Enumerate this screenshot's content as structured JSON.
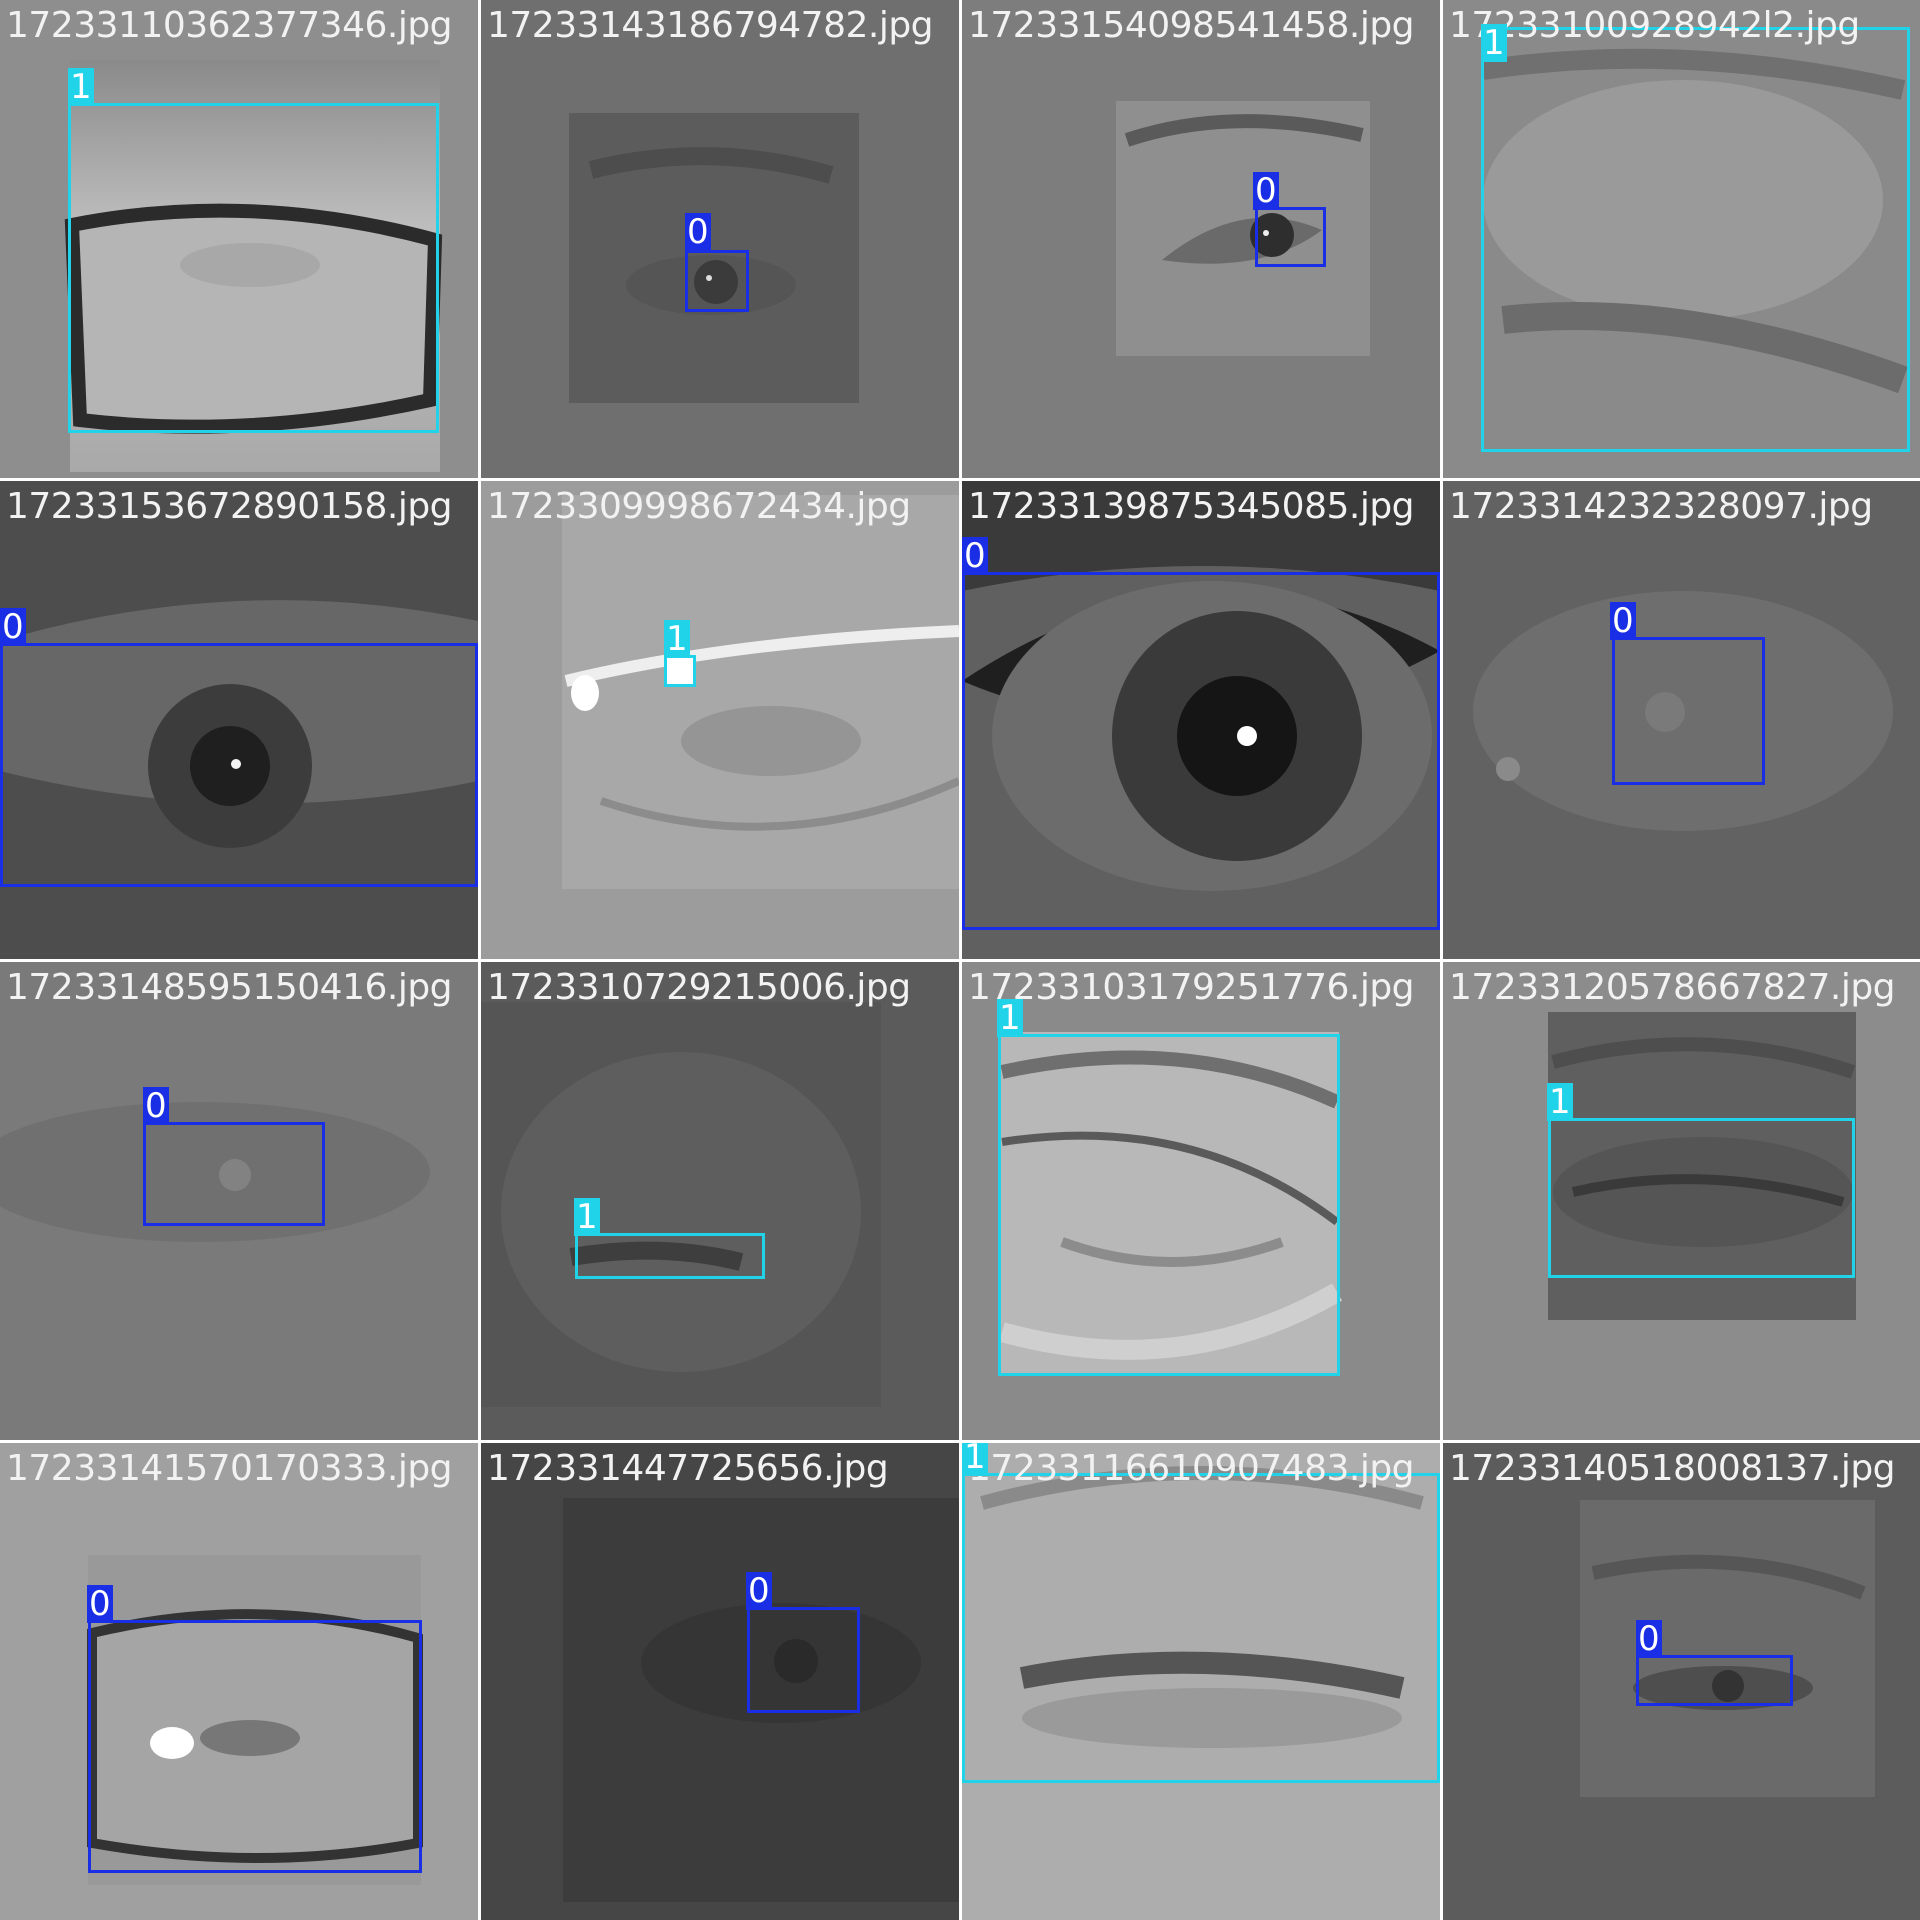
{
  "colors": {
    "class_0": "#1a2ee6",
    "class_1": "#21d3e8",
    "filename_text": "#f2f2f2"
  },
  "tiles": [
    {
      "filename": "17233110362377346.jpg",
      "detections": [
        {
          "label": "1"
        }
      ]
    },
    {
      "filename": "17233143186794782.jpg",
      "detections": [
        {
          "label": "0"
        }
      ]
    },
    {
      "filename": "17233154098541458.jpg",
      "detections": [
        {
          "label": "0"
        }
      ]
    },
    {
      "filename": "17233100928942l2.jpg",
      "detections": [
        {
          "label": "1"
        }
      ]
    },
    {
      "filename": "17233153672890158.jpg",
      "detections": [
        {
          "label": "0"
        }
      ]
    },
    {
      "filename": "1723309998672434.jpg",
      "detections": [
        {
          "label": "1"
        }
      ]
    },
    {
      "filename": "17233139875345085.jpg",
      "detections": [
        {
          "label": "0"
        }
      ]
    },
    {
      "filename": "1723314232328097.jpg",
      "detections": [
        {
          "label": "0"
        }
      ]
    },
    {
      "filename": "17233148595150416.jpg",
      "detections": [
        {
          "label": "0"
        }
      ]
    },
    {
      "filename": "1723310729215006.jpg",
      "detections": [
        {
          "label": "1"
        }
      ]
    },
    {
      "filename": "17233103179251776.jpg",
      "detections": [
        {
          "label": "1"
        }
      ]
    },
    {
      "filename": "17233120578667827.jpg",
      "detections": [
        {
          "label": "1"
        }
      ]
    },
    {
      "filename": "17233141570170333.jpg",
      "detections": [
        {
          "label": "0"
        }
      ]
    },
    {
      "filename": "172331447725656.jpg",
      "detections": [
        {
          "label": "0"
        }
      ]
    },
    {
      "filename": "17233116610907483.jpg",
      "detections": [
        {
          "label": "1"
        }
      ]
    },
    {
      "filename": "17233140518008137.jpg",
      "detections": [
        {
          "label": "0"
        }
      ]
    }
  ]
}
